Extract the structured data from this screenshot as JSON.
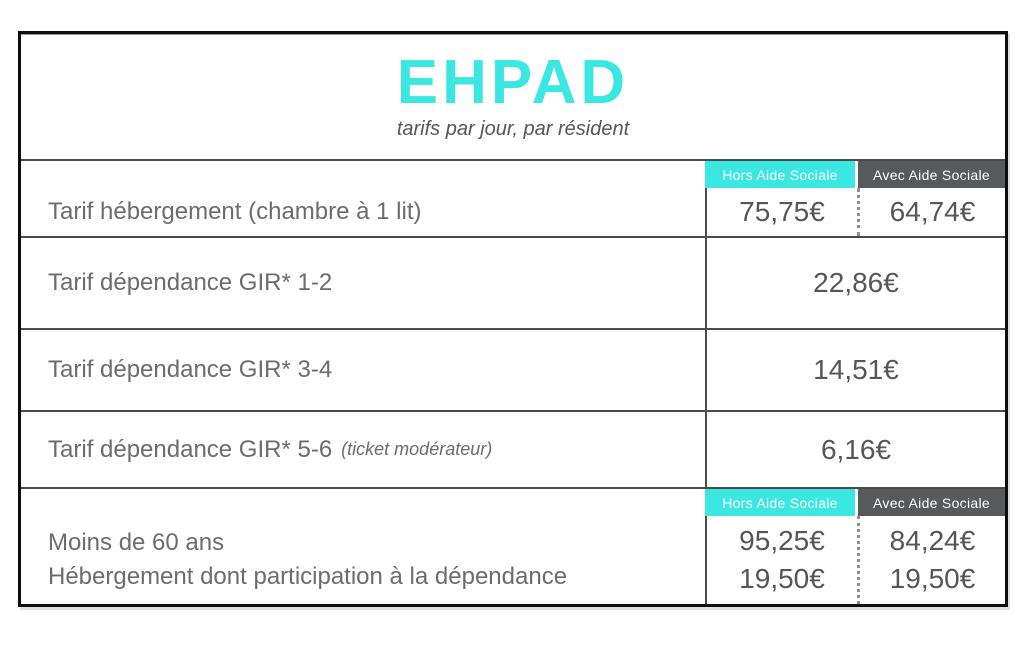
{
  "header": {
    "title": "EHPAD",
    "subtitle": "tarifs par jour, par résident"
  },
  "columns": {
    "without_aid": "Hors Aide Sociale",
    "with_aid": "Avec Aide Sociale"
  },
  "rows": [
    {
      "label": "Tarif hébergement (chambre à 1 lit)",
      "price_without": "75,75€",
      "price_with": "64,74€"
    },
    {
      "label": "Tarif dépendance GIR* 1-2",
      "price": "22,86€"
    },
    {
      "label": "Tarif dépendance GIR* 3-4",
      "price": "14,51€"
    },
    {
      "label": "Tarif dépendance GIR* 5-6",
      "label_note": "(ticket modérateur)",
      "price": "6,16€"
    },
    {
      "label_line1": "Moins de 60 ans",
      "label_line2": "Hébergement dont participation à la dépendance",
      "price_without_line1": "95,25€",
      "price_without_line2": "19,50€",
      "price_with_line1": "84,24€",
      "price_with_line2": "19,50€"
    }
  ],
  "colors": {
    "accent_cyan": "#3be8e1",
    "badge_dark": "#58595b",
    "text_gray": "#6b6c6e"
  }
}
